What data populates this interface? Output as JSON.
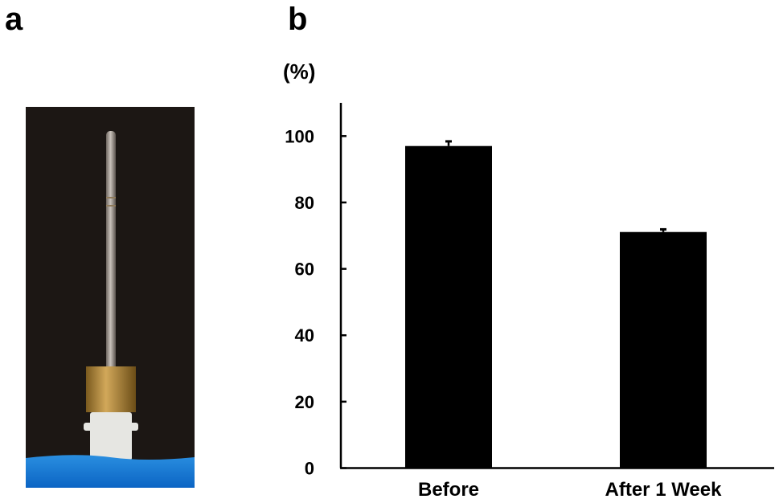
{
  "panels": {
    "a": "a",
    "b": "b"
  },
  "photo": {
    "subject": "needle-probe"
  },
  "chart_data": {
    "type": "bar",
    "title": "",
    "ylabel": "(%)",
    "xlabel": "",
    "categories": [
      "Before",
      "After 1 Week"
    ],
    "values": [
      97.0,
      71.1
    ],
    "errors": [
      1.4,
      0.8
    ],
    "ylim": [
      0,
      110
    ],
    "yticks": [
      0,
      20,
      40,
      60,
      80,
      100
    ],
    "grid": false,
    "bar_color": "#000000"
  }
}
